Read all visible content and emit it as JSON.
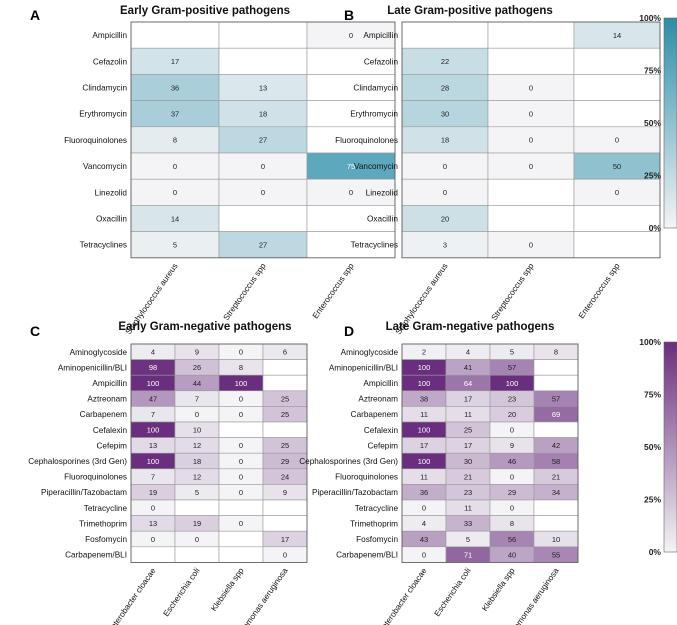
{
  "chart_data": [
    {
      "type": "heatmap",
      "panel": "A",
      "title": "Early Gram-positive pathogens",
      "rows": [
        "Ampicillin",
        "Cefazolin",
        "Clindamycin",
        "Erythromycin",
        "Fluoroquinolones",
        "Vancomycin",
        "Linezolid",
        "Oxacillin",
        "Tetracyclines"
      ],
      "columns": [
        "Staphylococcus aureus",
        "Streptococcus spp",
        "Enterococcus spp"
      ],
      "values": [
        [
          null,
          null,
          0
        ],
        [
          17,
          null,
          null
        ],
        [
          36,
          13,
          null
        ],
        [
          37,
          18,
          null
        ],
        [
          8,
          27,
          null
        ],
        [
          0,
          0,
          75
        ],
        [
          0,
          0,
          0
        ],
        [
          14,
          null,
          null
        ],
        [
          5,
          27,
          null
        ]
      ],
      "range": [
        0,
        100
      ],
      "colorscale": [
        "#f4f4f6",
        "#2a8ea8"
      ]
    },
    {
      "type": "heatmap",
      "panel": "B",
      "title": "Late Gram-positive pathogens",
      "rows": [
        "Ampicillin",
        "Cefazolin",
        "Clindamycin",
        "Erythromycin",
        "Fluoroquinolones",
        "Vancomycin",
        "Linezolid",
        "Oxacillin",
        "Tetracyclines"
      ],
      "columns": [
        "Staphylococcus aureus",
        "Streptococcus spp",
        "Enterococcus spp"
      ],
      "values": [
        [
          null,
          null,
          14
        ],
        [
          22,
          null,
          null
        ],
        [
          28,
          0,
          null
        ],
        [
          30,
          0,
          null
        ],
        [
          18,
          0,
          0
        ],
        [
          0,
          0,
          50
        ],
        [
          0,
          null,
          0
        ],
        [
          20,
          null,
          null
        ],
        [
          3,
          0,
          null
        ]
      ],
      "range": [
        0,
        100
      ],
      "colorscale": [
        "#f4f4f6",
        "#2a8ea8"
      ],
      "colorbar": {
        "ticks": [
          "100%",
          "75%",
          "50%",
          "25%",
          "0%"
        ]
      }
    },
    {
      "type": "heatmap",
      "panel": "C",
      "title": "Early Gram-negative pathogens",
      "rows": [
        "Aminoglycoside",
        "Aminopenicillin/BLI",
        "Ampicillin",
        "Aztreonam",
        "Carbapenem",
        "Cefalexin",
        "Cefepim",
        "Cephalosporines (3rd Gen)",
        "Fluoroquinolones",
        "Piperacillin/Tazobactam",
        "Tetracycline",
        "Trimethoprim",
        "Fosfomycin",
        "Carbapenem/BLI"
      ],
      "columns": [
        "Enterobacter cloacae",
        "Escherichia coli",
        "Klebsiella spp",
        "Pseudomonas aeruginosa"
      ],
      "values": [
        [
          4,
          9,
          0,
          6
        ],
        [
          98,
          26,
          8,
          null
        ],
        [
          100,
          44,
          100,
          null
        ],
        [
          47,
          7,
          0,
          25
        ],
        [
          7,
          0,
          0,
          25
        ],
        [
          100,
          10,
          null,
          null
        ],
        [
          13,
          12,
          0,
          25
        ],
        [
          100,
          18,
          0,
          29
        ],
        [
          7,
          12,
          0,
          24
        ],
        [
          19,
          5,
          0,
          9
        ],
        [
          0,
          null,
          null,
          null
        ],
        [
          13,
          19,
          0,
          null
        ],
        [
          0,
          0,
          null,
          17
        ],
        [
          null,
          null,
          null,
          0
        ]
      ],
      "range": [
        0,
        100
      ],
      "colorscale": [
        "#f4f4f6",
        "#6a2e7e"
      ]
    },
    {
      "type": "heatmap",
      "panel": "D",
      "title": "Late Gram-negative pathogens",
      "rows": [
        "Aminoglycoside",
        "Aminopenicillin/BLI",
        "Ampicillin",
        "Aztreonam",
        "Carbapenem",
        "Cefalexin",
        "Cefepim",
        "Cephalosporines (3rd Gen)",
        "Fluoroquinolones",
        "Piperacillin/Tazobactam",
        "Tetracycline",
        "Trimethoprim",
        "Fosfomycin",
        "Carbapenem/BLI"
      ],
      "columns": [
        "Enterobacter cloacae",
        "Escherichia coli",
        "Klebsiella spp",
        "Pseudomonas aeruginosa"
      ],
      "values": [
        [
          2,
          4,
          5,
          8
        ],
        [
          100,
          41,
          57,
          null
        ],
        [
          100,
          64,
          100,
          null
        ],
        [
          38,
          17,
          23,
          57
        ],
        [
          11,
          11,
          20,
          69
        ],
        [
          100,
          25,
          0,
          null
        ],
        [
          17,
          17,
          9,
          42
        ],
        [
          100,
          30,
          46,
          58
        ],
        [
          11,
          21,
          0,
          21
        ],
        [
          36,
          23,
          29,
          34
        ],
        [
          0,
          11,
          0,
          null
        ],
        [
          4,
          33,
          8,
          null
        ],
        [
          43,
          5,
          56,
          10
        ],
        [
          0,
          71,
          40,
          55
        ]
      ],
      "range": [
        0,
        100
      ],
      "colorscale": [
        "#f4f4f6",
        "#6a2e7e"
      ],
      "colorbar": {
        "ticks": [
          "100%",
          "75%",
          "50%",
          "25%",
          "0%"
        ]
      }
    }
  ]
}
